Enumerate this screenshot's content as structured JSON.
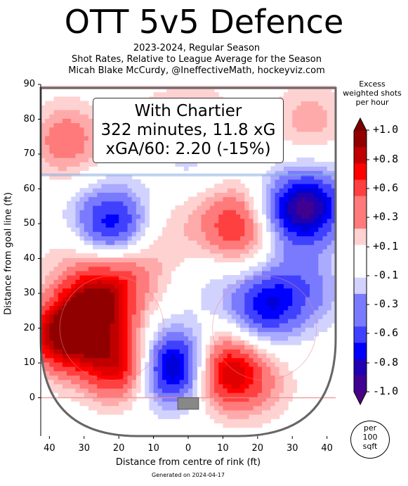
{
  "chart_data": {
    "type": "heatmap",
    "title": "OTT 5v5 Defence",
    "subtitle_lines": [
      "2023-2024, Regular Season",
      "Shot Rates, Relative to League Average for the Season",
      "Micah Blake McCurdy, @IneffectiveMath, hockeyviz.com"
    ],
    "xlabel": "Distance from centre of rink (ft)",
    "ylabel": "Distance from goal line (ft)",
    "x_tick_labels": [
      "40",
      "30",
      "20",
      "10",
      "0",
      "10",
      "20",
      "30",
      "40"
    ],
    "y_ticks": [
      0,
      10,
      20,
      30,
      40,
      50,
      60,
      70,
      80,
      90
    ],
    "xlim": [
      -42.5,
      42.5
    ],
    "ylim": [
      -11,
      90
    ],
    "annotation_lines": [
      "With Chartier",
      "322 minutes, 11.8 xG",
      "xGA/60: 2.20 (-15%)"
    ],
    "colorbar": {
      "title_lines": [
        "Excess",
        "weighted shots",
        "per hour"
      ],
      "tick_labels": [
        "+1.0",
        "+0.8",
        "+0.6",
        "+0.3",
        "+0.1",
        "-0.1",
        "-0.3",
        "-0.6",
        "-0.8",
        "-1.0"
      ],
      "range": [
        -1.0,
        1.0
      ],
      "negative_color": "#0000ff",
      "positive_color": "#ff0000",
      "unit_lines": [
        "per",
        "100",
        "sqft"
      ]
    },
    "blobs": [
      {
        "x": 35,
        "y": 55,
        "v": -0.8
      },
      {
        "x": 26,
        "y": 52,
        "v": -0.35
      },
      {
        "x": 22,
        "y": 26,
        "v": -0.6
      },
      {
        "x": 30,
        "y": 33,
        "v": -0.25
      },
      {
        "x": 38,
        "y": 30,
        "v": -0.15
      },
      {
        "x": -4,
        "y": 9,
        "v": -1.0
      },
      {
        "x": -22,
        "y": 50,
        "v": -0.7
      },
      {
        "x": -34,
        "y": 48,
        "v": -0.2
      },
      {
        "x": 6,
        "y": 33,
        "v": -0.1
      },
      {
        "x": 0,
        "y": 72,
        "v": -0.2
      },
      {
        "x": 14,
        "y": 50,
        "v": 0.6
      },
      {
        "x": 22,
        "y": 43,
        "v": 0.1
      },
      {
        "x": 10,
        "y": 8,
        "v": 0.8
      },
      {
        "x": 20,
        "y": 4,
        "v": 0.25
      },
      {
        "x": -26,
        "y": 28,
        "v": 0.85
      },
      {
        "x": -20,
        "y": 10,
        "v": 0.8
      },
      {
        "x": -36,
        "y": 18,
        "v": 0.95
      },
      {
        "x": -34,
        "y": 45,
        "v": 0.3
      },
      {
        "x": -16,
        "y": 37,
        "v": 0.3
      },
      {
        "x": -35,
        "y": 74,
        "v": 0.4
      },
      {
        "x": 35,
        "y": 80,
        "v": 0.25
      },
      {
        "x": -5,
        "y": 48,
        "v": 0.15
      },
      {
        "x": 5,
        "y": 82,
        "v": 0.15
      },
      {
        "x": -8,
        "y": 80,
        "v": 0.15
      }
    ]
  }
}
